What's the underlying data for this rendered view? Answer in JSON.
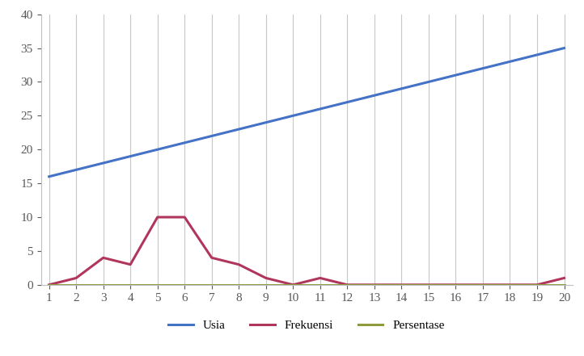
{
  "chart_data": {
    "type": "line",
    "categories": [
      "1",
      "2",
      "3",
      "4",
      "5",
      "6",
      "7",
      "8",
      "9",
      "10",
      "11",
      "12",
      "13",
      "14",
      "15",
      "16",
      "17",
      "18",
      "19",
      "20"
    ],
    "series": [
      {
        "name": "Usia",
        "color": "#4472c4",
        "values": [
          16,
          17,
          18,
          19,
          20,
          21,
          22,
          23,
          24,
          25,
          26,
          27,
          28,
          29,
          30,
          31,
          32,
          33,
          34,
          35
        ]
      },
      {
        "name": "Frekuensi",
        "color": "#b0365c",
        "values": [
          0,
          1,
          4,
          3,
          10,
          10,
          4,
          3,
          1,
          0,
          1,
          0,
          0,
          0,
          0,
          0,
          0,
          0,
          0,
          1
        ]
      },
      {
        "name": "Persentase",
        "color": "#8f9a3c",
        "values": [
          0,
          0,
          0,
          0,
          0,
          0,
          0,
          0,
          0,
          0,
          0,
          0,
          0,
          0,
          0,
          0,
          0,
          0,
          0,
          0
        ]
      }
    ],
    "ylim": [
      0,
      40
    ],
    "yticks": [
      0,
      5,
      10,
      15,
      20,
      25,
      30,
      35,
      40
    ],
    "grid": "x",
    "legend": "bottom"
  }
}
